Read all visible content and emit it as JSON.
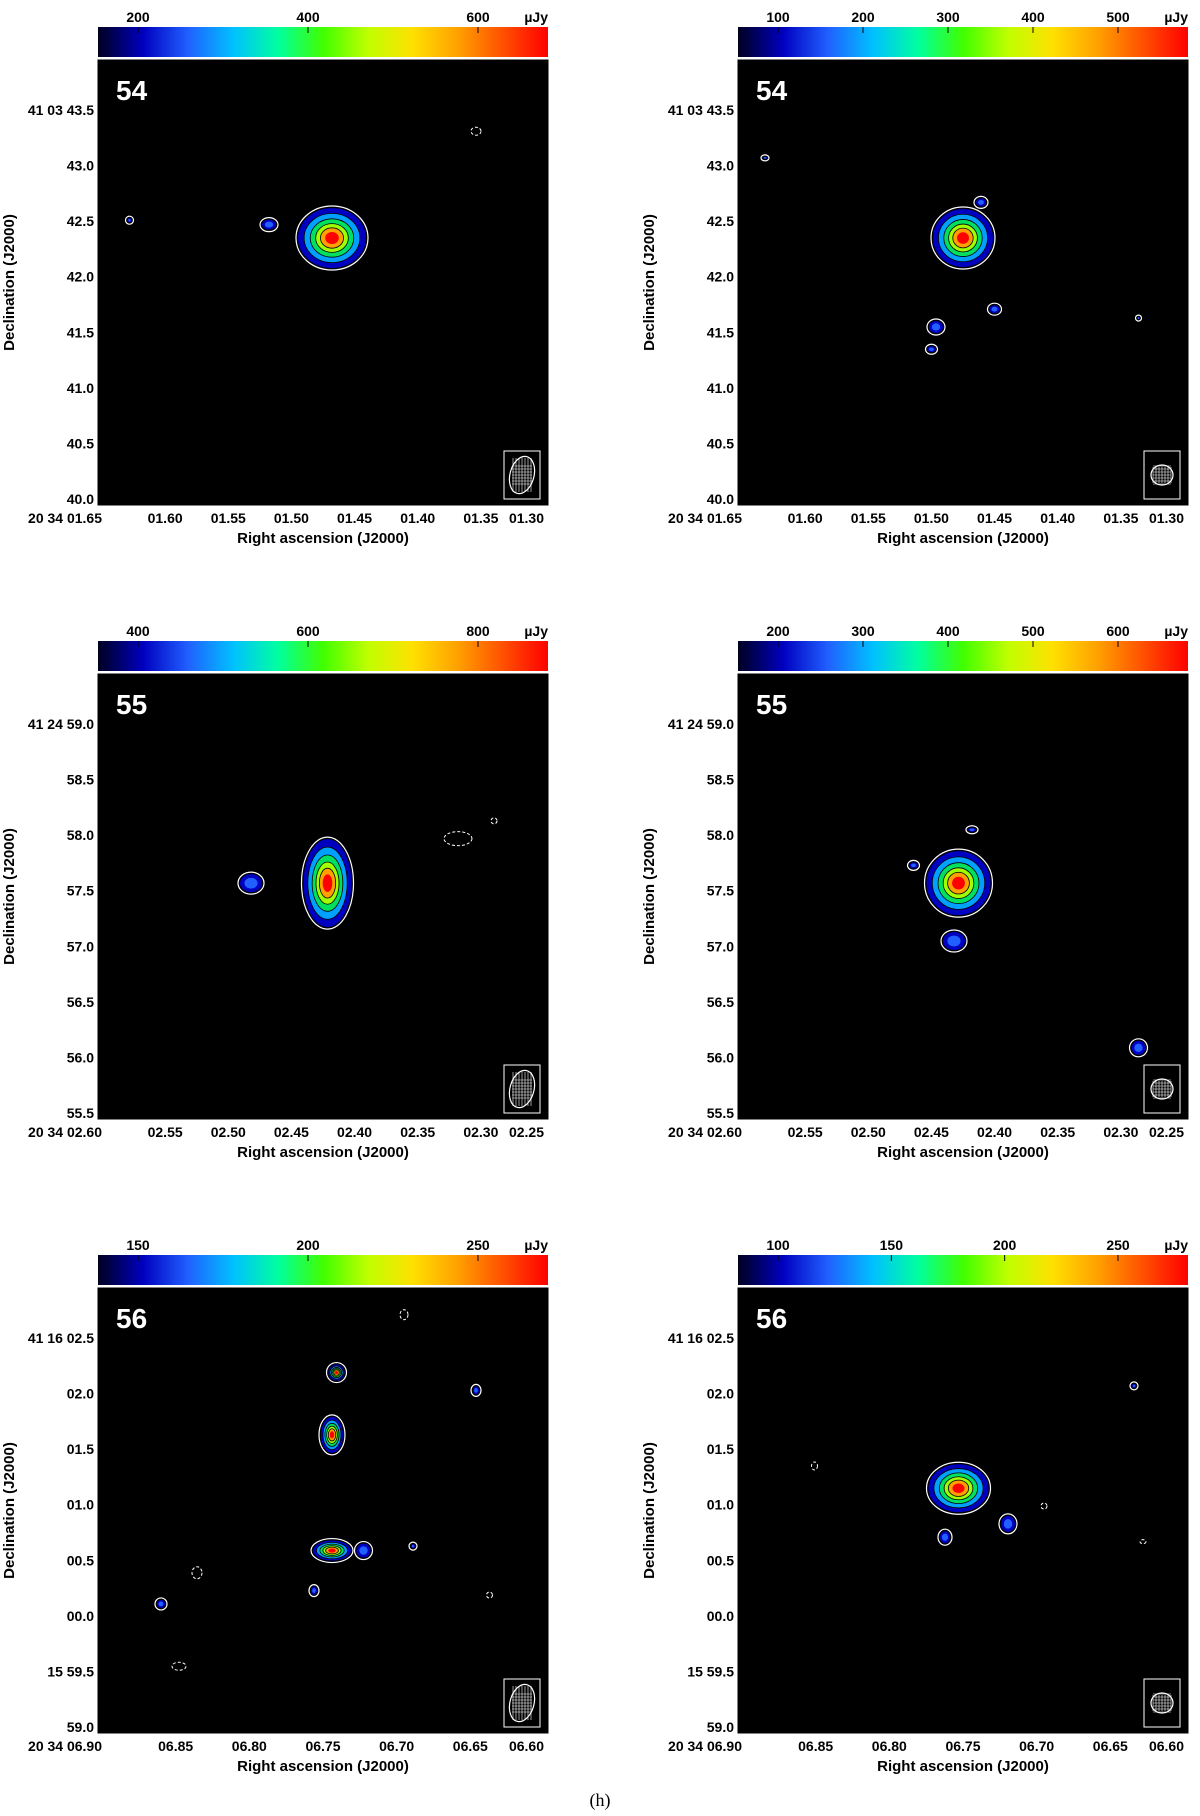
{
  "figure": {
    "caption": "(h)",
    "unit_label": "µJy",
    "colors": {
      "background": "#000000",
      "contour": "#ffffff",
      "colormap": [
        "#000020",
        "#0000c0",
        "#2060ff",
        "#00c0ff",
        "#00ffa0",
        "#40ff00",
        "#c0ff00",
        "#ffe000",
        "#ffa000",
        "#ff5000",
        "#ff0000"
      ]
    },
    "panels": [
      {
        "id": "54-left",
        "source_label": "54",
        "colorbar_ticks": [
          "200",
          "400",
          "600"
        ],
        "ylabel": "Declination (J2000)",
        "xlabel": "Right ascension (J2000)",
        "yticks": [
          "41 03 43.5",
          "43.0",
          "42.5",
          "42.0",
          "41.5",
          "41.0",
          "40.5",
          "40.0"
        ],
        "xticks": [
          "20 34 01.65",
          "01.60",
          "01.55",
          "01.50",
          "01.45",
          "01.40",
          "01.35",
          "01.30"
        ],
        "beam_shape": "elongated"
      },
      {
        "id": "54-right",
        "source_label": "54",
        "colorbar_ticks": [
          "100",
          "200",
          "300",
          "400",
          "500"
        ],
        "ylabel": "Declination (J2000)",
        "xlabel": "Right ascension (J2000)",
        "yticks": [
          "41 03 43.5",
          "43.0",
          "42.5",
          "42.0",
          "41.5",
          "41.0",
          "40.5",
          "40.0"
        ],
        "xticks": [
          "20 34 01.65",
          "01.60",
          "01.55",
          "01.50",
          "01.45",
          "01.40",
          "01.35",
          "01.30"
        ],
        "beam_shape": "round"
      },
      {
        "id": "55-left",
        "source_label": "55",
        "colorbar_ticks": [
          "400",
          "600",
          "800"
        ],
        "ylabel": "Declination (J2000)",
        "xlabel": "Right ascension (J2000)",
        "yticks": [
          "41 24 59.0",
          "58.5",
          "58.0",
          "57.5",
          "57.0",
          "56.5",
          "56.0",
          "55.5"
        ],
        "xticks": [
          "20 34 02.60",
          "02.55",
          "02.50",
          "02.45",
          "02.40",
          "02.35",
          "02.30",
          "02.25"
        ],
        "beam_shape": "elongated"
      },
      {
        "id": "55-right",
        "source_label": "55",
        "colorbar_ticks": [
          "200",
          "300",
          "400",
          "500",
          "600"
        ],
        "ylabel": "Declination (J2000)",
        "xlabel": "Right ascension (J2000)",
        "yticks": [
          "41 24 59.0",
          "58.5",
          "58.0",
          "57.5",
          "57.0",
          "56.5",
          "56.0",
          "55.5"
        ],
        "xticks": [
          "20 34 02.60",
          "02.55",
          "02.50",
          "02.45",
          "02.40",
          "02.35",
          "02.30",
          "02.25"
        ],
        "beam_shape": "round"
      },
      {
        "id": "56-left",
        "source_label": "56",
        "colorbar_ticks": [
          "150",
          "200",
          "250"
        ],
        "ylabel": "Declination (J2000)",
        "xlabel": "Right ascension (J2000)",
        "yticks": [
          "41 16 02.5",
          "02.0",
          "01.5",
          "01.0",
          "00.5",
          "00.0",
          "15 59.5",
          "59.0"
        ],
        "xticks": [
          "20 34 06.90",
          "06.85",
          "06.80",
          "06.75",
          "06.70",
          "06.65",
          "06.60"
        ],
        "beam_shape": "elongated"
      },
      {
        "id": "56-right",
        "source_label": "56",
        "colorbar_ticks": [
          "100",
          "150",
          "200",
          "250"
        ],
        "ylabel": "Declination (J2000)",
        "xlabel": "Right ascension (J2000)",
        "yticks": [
          "41 16 02.5",
          "02.0",
          "01.5",
          "01.0",
          "00.5",
          "00.0",
          "15 59.5",
          "59.0"
        ],
        "xticks": [
          "20 34 06.90",
          "06.85",
          "06.80",
          "06.75",
          "06.70",
          "06.65",
          "06.60"
        ],
        "beam_shape": "round"
      }
    ]
  }
}
